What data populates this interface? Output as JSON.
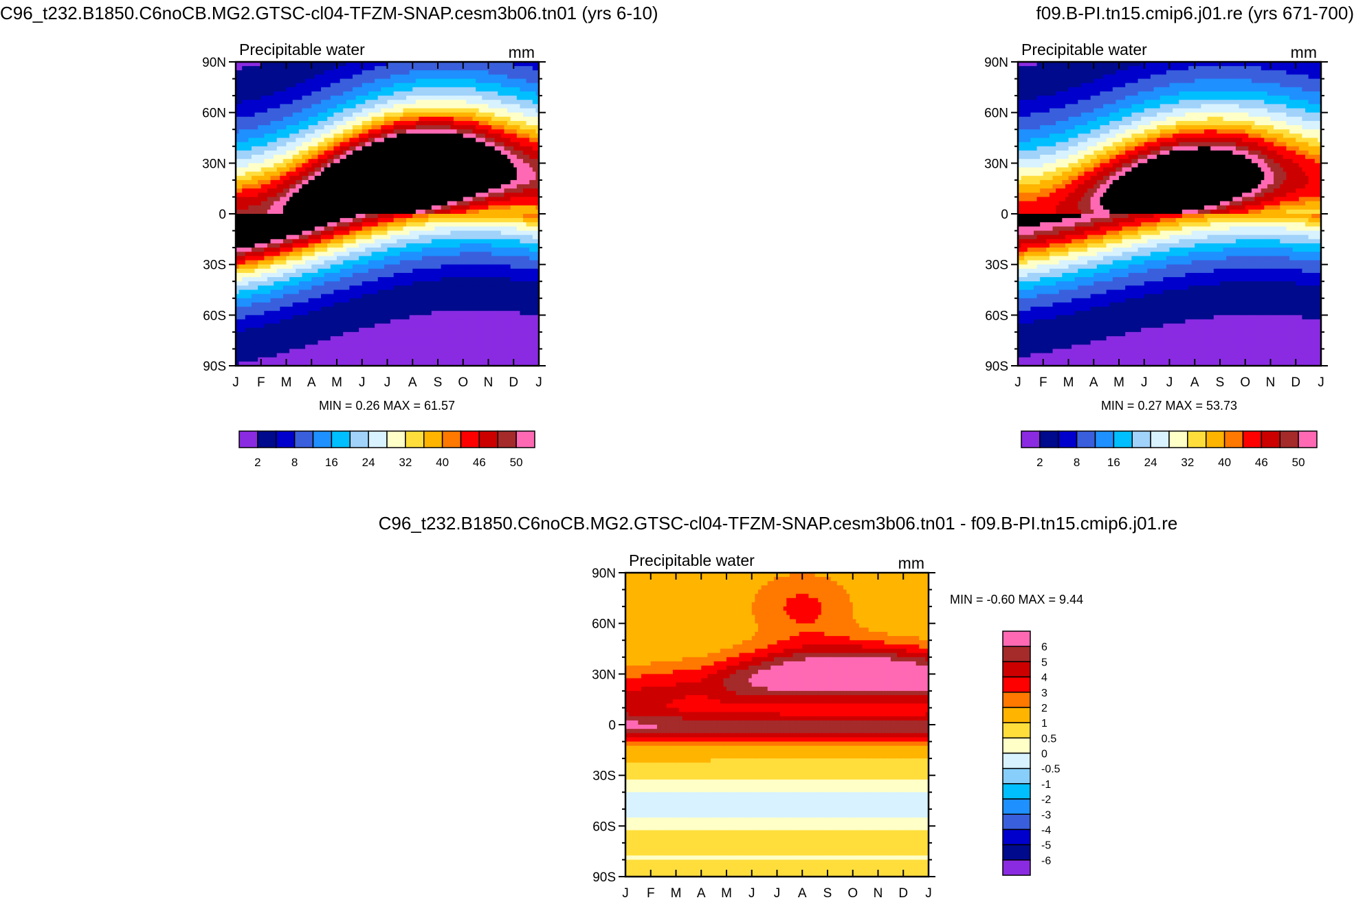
{
  "chart_data": [
    {
      "type": "heatmap",
      "id": "case",
      "title": "C96_t232.B1850.C6noCB.MG2.GTSC-cl04-TFZM-SNAP.cesm3b06.tn01 (yrs 6-10)",
      "left_label": "Precipitable water",
      "units": "mm",
      "stats": {
        "min_label": "MIN =",
        "min": "0.26",
        "max_label": "MAX =",
        "max": "61.57"
      },
      "x_ticks": [
        "J",
        "F",
        "M",
        "A",
        "M",
        "J",
        "J",
        "A",
        "S",
        "O",
        "N",
        "D",
        "J"
      ],
      "y_ticks": [
        "90N",
        "60N",
        "30N",
        "0",
        "30S",
        "60S",
        "90S"
      ],
      "y_range": [
        -90,
        90
      ],
      "levels": [
        2,
        5,
        8,
        12,
        16,
        20,
        24,
        28,
        32,
        35,
        38,
        40,
        43,
        46,
        48,
        50
      ],
      "colorbar_labels": [
        "2",
        "8",
        "16",
        "24",
        "32",
        "40",
        "46",
        "50"
      ],
      "colors": [
        "#8a2be2",
        "#000a8c",
        "#0000cd",
        "#3a5fdc",
        "#1e90ff",
        "#00bfff",
        "#a0d2fa",
        "#d8f2ff",
        "#ffffc8",
        "#ffde3c",
        "#ffb400",
        "#ff7800",
        "#ff0000",
        "#cd0000",
        "#a52a2a",
        "#ff69b4"
      ],
      "itcz_amp": 18,
      "peak": 58,
      "pole_n": 3,
      "pole_s": 1
    },
    {
      "type": "heatmap",
      "id": "control",
      "title": "f09.B-PI.tn15.cmip6.j01.re (yrs 671-700)",
      "left_label": "Precipitable water",
      "units": "mm",
      "stats": {
        "min_label": "MIN =",
        "min": "0.27",
        "max_label": "MAX =",
        "max": "53.73"
      },
      "x_ticks": [
        "J",
        "F",
        "M",
        "A",
        "M",
        "J",
        "J",
        "A",
        "S",
        "O",
        "N",
        "D",
        "J"
      ],
      "y_ticks": [
        "90N",
        "60N",
        "30N",
        "0",
        "30S",
        "60S",
        "90S"
      ],
      "y_range": [
        -90,
        90
      ],
      "levels": [
        2,
        5,
        8,
        12,
        16,
        20,
        24,
        28,
        32,
        35,
        38,
        40,
        43,
        46,
        48,
        50
      ],
      "colorbar_labels": [
        "2",
        "8",
        "16",
        "24",
        "32",
        "40",
        "46",
        "50"
      ],
      "colors": [
        "#8a2be2",
        "#000a8c",
        "#0000cd",
        "#3a5fdc",
        "#1e90ff",
        "#00bfff",
        "#a0d2fa",
        "#d8f2ff",
        "#ffffc8",
        "#ffde3c",
        "#ffb400",
        "#ff7800",
        "#ff0000",
        "#cd0000",
        "#a52a2a",
        "#ff69b4"
      ],
      "itcz_amp": 14,
      "peak": 51,
      "pole_n": 3,
      "pole_s": 1
    },
    {
      "type": "heatmap",
      "id": "diff",
      "title": "C96_t232.B1850.C6noCB.MG2.GTSC-cl04-TFZM-SNAP.cesm3b06.tn01 - f09.B-PI.tn15.cmip6.j01.re",
      "left_label": "Precipitable water",
      "units": "mm",
      "stats": {
        "min_label": "MIN =",
        "min": "-0.60",
        "max_label": "MAX =",
        "max": "9.44"
      },
      "x_ticks": [
        "J",
        "F",
        "M",
        "A",
        "M",
        "J",
        "J",
        "A",
        "S",
        "O",
        "N",
        "D",
        "J"
      ],
      "y_ticks": [
        "90N",
        "60N",
        "30N",
        "0",
        "30S",
        "60S",
        "90S"
      ],
      "y_range": [
        -90,
        90
      ],
      "levels": [
        -6,
        -5,
        -4,
        -3,
        -2,
        -1,
        -0.5,
        0,
        0.5,
        1,
        2,
        3,
        4,
        5,
        6
      ],
      "colorbar_labels": [
        "6",
        "5",
        "4",
        "3",
        "2",
        "1",
        "0.5",
        "0",
        "-0.5",
        "-1",
        "-2",
        "-3",
        "-4",
        "-5",
        "-6"
      ],
      "colors": [
        "#8a2be2",
        "#000a8c",
        "#0000cd",
        "#3a5fdc",
        "#1e90ff",
        "#00bfff",
        "#87cefa",
        "#d8f2ff",
        "#ffffc8",
        "#ffde3c",
        "#ffb400",
        "#ff7800",
        "#ff0000",
        "#cd0000",
        "#a52a2a",
        "#ff69b4"
      ]
    }
  ]
}
